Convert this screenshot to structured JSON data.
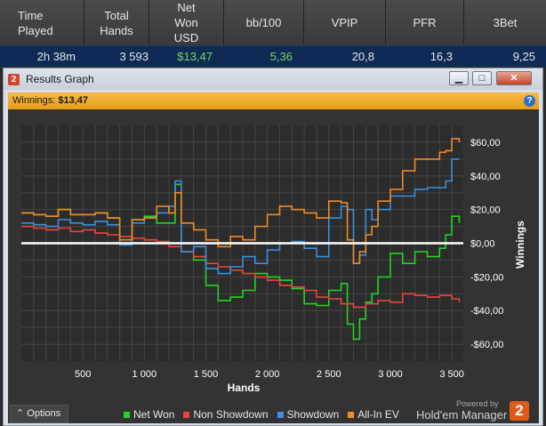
{
  "stats": {
    "headers": [
      "Time\nPlayed",
      "Total\nHands",
      "Net\nWon\nUSD",
      "bb/100",
      "VPIP",
      "PFR",
      "3Bet"
    ],
    "values": [
      "2h 38m",
      "3 593",
      "$13,47",
      "5,36",
      "20,8",
      "16,3",
      "9,25"
    ]
  },
  "window": {
    "title": "Results Graph",
    "app_badge": "2",
    "controls": {
      "minimize": "▁",
      "maximize": "□",
      "close": "✕"
    }
  },
  "winnings_bar": {
    "label": "Winnings:",
    "value": "$13,47",
    "help_icon": "?"
  },
  "chart_data": {
    "type": "line",
    "xlabel": "Hands",
    "ylabel": "Winnings",
    "xlim": [
      0,
      3593
    ],
    "ylim": [
      -70,
      70
    ],
    "x_ticks": [
      500,
      1000,
      1500,
      2000,
      2500,
      3000,
      3500
    ],
    "x_tick_labels": [
      "500",
      "1 000",
      "1 500",
      "2 000",
      "2 500",
      "3 000",
      "3 500"
    ],
    "y_ticks": [
      60,
      40,
      20,
      0,
      -20,
      -40,
      -60
    ],
    "y_tick_labels": [
      "$60,00",
      "$40,00",
      "$20,00",
      "$0,00",
      "-$20,00",
      "-$40,00",
      "-$60,00"
    ],
    "grid": true,
    "zero_line_color": "#ffffff",
    "series": [
      {
        "name": "Net Won",
        "color": "#23d423",
        "x": [
          0,
          100,
          200,
          300,
          400,
          500,
          600,
          700,
          800,
          900,
          1000,
          1100,
          1200,
          1250,
          1300,
          1400,
          1500,
          1600,
          1700,
          1800,
          1900,
          2000,
          2100,
          2200,
          2300,
          2400,
          2500,
          2600,
          2650,
          2700,
          2750,
          2800,
          2850,
          2900,
          3000,
          3100,
          3200,
          3300,
          3400,
          3450,
          3500,
          3560
        ],
        "values": [
          18,
          17,
          16,
          20,
          17,
          17,
          18,
          15,
          2,
          14,
          16,
          12,
          12,
          35,
          -5,
          -10,
          -25,
          -34,
          -32,
          -28,
          -18,
          -20,
          -22,
          -27,
          -36,
          -37,
          -28,
          -24,
          -48,
          -57,
          -45,
          -35,
          -30,
          -20,
          -6,
          -12,
          -5,
          -8,
          -3,
          5,
          16,
          12
        ]
      },
      {
        "name": "Non Showdown",
        "color": "#e8463c",
        "x": [
          0,
          100,
          200,
          300,
          400,
          500,
          600,
          700,
          800,
          900,
          1000,
          1100,
          1200,
          1300,
          1400,
          1500,
          1600,
          1700,
          1800,
          1900,
          2000,
          2100,
          2200,
          2300,
          2400,
          2500,
          2600,
          2700,
          2800,
          2900,
          3000,
          3100,
          3200,
          3300,
          3400,
          3500,
          3560
        ],
        "values": [
          10,
          9,
          8,
          9,
          7,
          8,
          6,
          5,
          4,
          3,
          2,
          1,
          -2,
          -5,
          -8,
          -12,
          -14,
          -16,
          -18,
          -20,
          -22,
          -25,
          -26,
          -28,
          -32,
          -33,
          -36,
          -38,
          -36,
          -34,
          -35,
          -30,
          -31,
          -32,
          -31,
          -33,
          -35
        ]
      },
      {
        "name": "Showdown",
        "color": "#3a8fe0",
        "x": [
          0,
          100,
          200,
          300,
          400,
          500,
          600,
          700,
          800,
          900,
          1000,
          1100,
          1200,
          1250,
          1300,
          1400,
          1500,
          1600,
          1700,
          1800,
          1900,
          2000,
          2100,
          2200,
          2300,
          2400,
          2500,
          2600,
          2650,
          2700,
          2750,
          2800,
          2850,
          2900,
          3000,
          3100,
          3200,
          3300,
          3400,
          3450,
          3500,
          3560
        ],
        "values": [
          12,
          11,
          10,
          14,
          12,
          11,
          13,
          11,
          -1,
          12,
          15,
          18,
          22,
          37,
          -5,
          -2,
          -15,
          -18,
          -14,
          -8,
          -12,
          -4,
          0,
          1,
          -3,
          -8,
          15,
          22,
          20,
          -12,
          -7,
          20,
          14,
          20,
          28,
          28,
          32,
          33,
          33,
          37,
          50,
          50
        ]
      },
      {
        "name": "All-In EV",
        "color": "#f08a24",
        "x": [
          0,
          100,
          200,
          300,
          400,
          500,
          600,
          700,
          800,
          900,
          1000,
          1100,
          1200,
          1250,
          1300,
          1400,
          1500,
          1600,
          1700,
          1800,
          1900,
          2000,
          2100,
          2200,
          2300,
          2400,
          2500,
          2600,
          2650,
          2700,
          2750,
          2800,
          2850,
          2900,
          3000,
          3100,
          3200,
          3300,
          3400,
          3450,
          3500,
          3560
        ],
        "values": [
          18,
          17,
          16,
          20,
          17,
          17,
          18,
          15,
          2,
          14,
          15,
          22,
          18,
          30,
          12,
          8,
          2,
          -2,
          4,
          2,
          10,
          17,
          22,
          20,
          18,
          15,
          25,
          24,
          2,
          -12,
          -5,
          5,
          10,
          25,
          32,
          43,
          50,
          50,
          54,
          55,
          62,
          60
        ]
      }
    ]
  },
  "bottom": {
    "options_label": "Options",
    "options_icon": "chevron-up-icon",
    "legend": [
      {
        "label": "Net Won",
        "color": "#23d423"
      },
      {
        "label": "Non Showdown",
        "color": "#e8463c"
      },
      {
        "label": "Showdown",
        "color": "#3a8fe0"
      },
      {
        "label": "All-In EV",
        "color": "#f08a24"
      }
    ],
    "powered_by": "Powered by",
    "brand": "Hold'em Manager",
    "brand_badge": "2"
  }
}
